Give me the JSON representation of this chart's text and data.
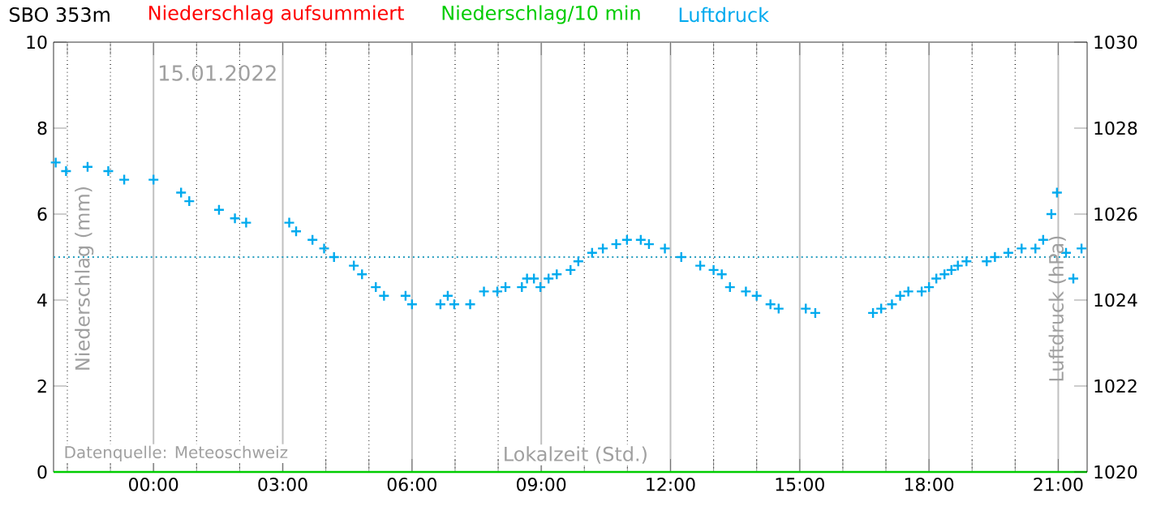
{
  "chart_data": {
    "type": "line",
    "title": "SBO 353m",
    "xlabel": "Lokalzeit (Std.)",
    "ylabel": "Niederschlag (mm)",
    "y2label": "Luftdruck (hPa)",
    "legend": "top",
    "annotations": [
      "15.01.2022",
      "Datenquelle: Meteoschweiz"
    ],
    "xlim": [
      -2.32,
      21.67
    ],
    "xticks": [
      {
        "value": -2,
        "label": null
      },
      {
        "value": -1,
        "label": null
      },
      {
        "value": 0,
        "label": "00:00"
      },
      {
        "value": 1,
        "label": null
      },
      {
        "value": 2,
        "label": null
      },
      {
        "value": 3,
        "label": "03:00"
      },
      {
        "value": 4,
        "label": null
      },
      {
        "value": 5,
        "label": null
      },
      {
        "value": 6,
        "label": "06:00"
      },
      {
        "value": 7,
        "label": null
      },
      {
        "value": 8,
        "label": null
      },
      {
        "value": 9,
        "label": "09:00"
      },
      {
        "value": 10,
        "label": null
      },
      {
        "value": 11,
        "label": null
      },
      {
        "value": 12,
        "label": "12:00"
      },
      {
        "value": 13,
        "label": null
      },
      {
        "value": 14,
        "label": null
      },
      {
        "value": 15,
        "label": "15:00"
      },
      {
        "value": 16,
        "label": null
      },
      {
        "value": 17,
        "label": null
      },
      {
        "value": 18,
        "label": "18:00"
      },
      {
        "value": 19,
        "label": null
      },
      {
        "value": 20,
        "label": null
      },
      {
        "value": 21,
        "label": "21:00"
      }
    ],
    "grid": "x",
    "ylim": [
      0,
      10
    ],
    "yticks": [
      0,
      2,
      4,
      6,
      8,
      10
    ],
    "y2lim": [
      1020,
      1030
    ],
    "y2ticks": [
      1020,
      1022,
      1024,
      1026,
      1028,
      1030
    ],
    "ref_lines": [
      {
        "axis": "y",
        "value": 5,
        "color": "#2a9fc0",
        "line_style": "dotted"
      }
    ],
    "series": [
      {
        "name": "Niederschlag aufsummiert",
        "color": "#ff0000"
      },
      {
        "name": "Niederschlag/10 min",
        "color": "#00cc00",
        "x": [
          -2.32,
          21.67
        ],
        "values": [
          0,
          0
        ]
      },
      {
        "name": "Luftdruck",
        "color": "#00aaee",
        "type": "scatter",
        "marker": "cross",
        "axis": "y2",
        "x": [
          -2.27,
          -2.03,
          -1.53,
          -1.05,
          -0.68,
          0.0,
          0.64,
          0.83,
          1.52,
          1.89,
          2.15,
          3.15,
          3.31,
          3.69,
          3.96,
          4.19,
          4.65,
          4.84,
          5.16,
          5.35,
          5.85,
          6.0,
          6.66,
          6.83,
          6.98,
          7.35,
          7.67,
          7.98,
          8.17,
          8.55,
          8.67,
          8.83,
          8.98,
          9.17,
          9.36,
          9.68,
          9.86,
          10.18,
          10.43,
          10.74,
          10.99,
          11.31,
          11.5,
          11.87,
          12.25,
          12.69,
          13.0,
          13.19,
          13.38,
          13.75,
          14.0,
          14.32,
          14.51,
          15.14,
          15.36,
          16.7,
          16.89,
          17.14,
          17.33,
          17.52,
          17.83,
          18.0,
          18.17,
          18.36,
          18.52,
          18.67,
          18.87,
          19.34,
          19.53,
          19.84,
          20.15,
          20.47,
          20.65,
          20.84,
          20.97,
          21.18,
          21.35,
          21.54
        ],
        "values": [
          1027.2,
          1027.0,
          1027.1,
          1027.0,
          1026.8,
          1026.8,
          1026.5,
          1026.3,
          1026.1,
          1025.9,
          1025.8,
          1025.8,
          1025.6,
          1025.4,
          1025.2,
          1025.0,
          1024.8,
          1024.6,
          1024.3,
          1024.1,
          1024.1,
          1023.9,
          1023.9,
          1024.1,
          1023.9,
          1023.9,
          1024.2,
          1024.2,
          1024.3,
          1024.3,
          1024.5,
          1024.5,
          1024.3,
          1024.5,
          1024.6,
          1024.7,
          1024.9,
          1025.1,
          1025.2,
          1025.3,
          1025.4,
          1025.4,
          1025.3,
          1025.2,
          1025.0,
          1024.8,
          1024.7,
          1024.6,
          1024.3,
          1024.2,
          1024.1,
          1023.9,
          1023.8,
          1023.8,
          1023.7,
          1023.7,
          1023.8,
          1023.9,
          1024.1,
          1024.2,
          1024.2,
          1024.3,
          1024.5,
          1024.6,
          1024.7,
          1024.8,
          1024.9,
          1024.9,
          1025.0,
          1025.1,
          1025.2,
          1025.2,
          1025.4,
          1026.0,
          1026.5,
          1025.1,
          1024.5,
          1025.2
        ]
      }
    ]
  }
}
